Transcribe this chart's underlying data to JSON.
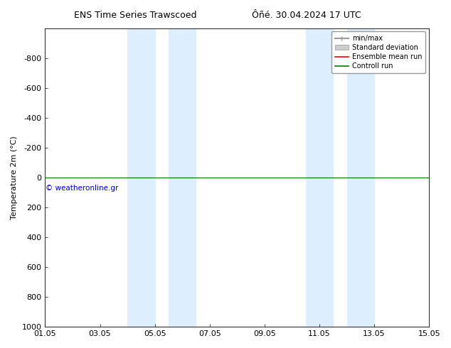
{
  "title_left": "ENS Time Series Trawscoed",
  "title_right": "Ôñé. 30.04.2024 17 UTC",
  "ylabel": "Temperature 2m (°C)",
  "ylim": [
    -1000,
    1000
  ],
  "yticks": [
    -800,
    -600,
    -400,
    -200,
    0,
    200,
    400,
    600,
    800,
    1000
  ],
  "xlim_start": 0,
  "xlim_end": 14,
  "xtick_labels": [
    "01.05",
    "03.05",
    "05.05",
    "07.05",
    "09.05",
    "11.05",
    "13.05",
    "15.05"
  ],
  "xtick_positions": [
    0,
    2,
    4,
    6,
    8,
    10,
    12,
    14
  ],
  "shaded_regions": [
    [
      3.0,
      4.0
    ],
    [
      4.5,
      5.5
    ],
    [
      9.5,
      10.5
    ],
    [
      11.0,
      12.0
    ]
  ],
  "shade_color": "#ddeeff",
  "green_line_color": "#008000",
  "red_line_color": "#ff0000",
  "watermark_text": "© weatheronline.gr",
  "watermark_color": "#0000cc",
  "legend_items": [
    {
      "label": "min/max",
      "color": "#999999",
      "lw": 1.5
    },
    {
      "label": "Standard deviation",
      "color": "#cccccc",
      "lw": 6
    },
    {
      "label": "Ensemble mean run",
      "color": "#ff0000",
      "lw": 1.2
    },
    {
      "label": "Controll run",
      "color": "#008000",
      "lw": 1.2
    }
  ],
  "bg_color": "#ffffff",
  "ax_bg_color": "#ffffff",
  "font_size": 8,
  "title_font_size": 9
}
